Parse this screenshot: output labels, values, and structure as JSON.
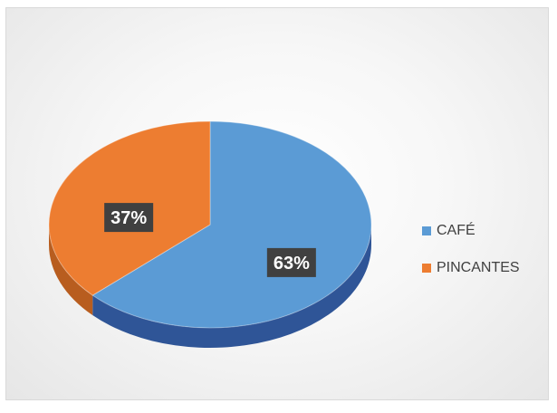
{
  "chart_data": {
    "type": "pie",
    "style": "3d",
    "categories": [
      "CAFÉ",
      "PINCANTES"
    ],
    "values": [
      63,
      37
    ],
    "data_labels": [
      "63%",
      "37%"
    ],
    "colors": [
      "#5b9bd5",
      "#ed7d31"
    ],
    "legend_position": "right",
    "title": ""
  }
}
